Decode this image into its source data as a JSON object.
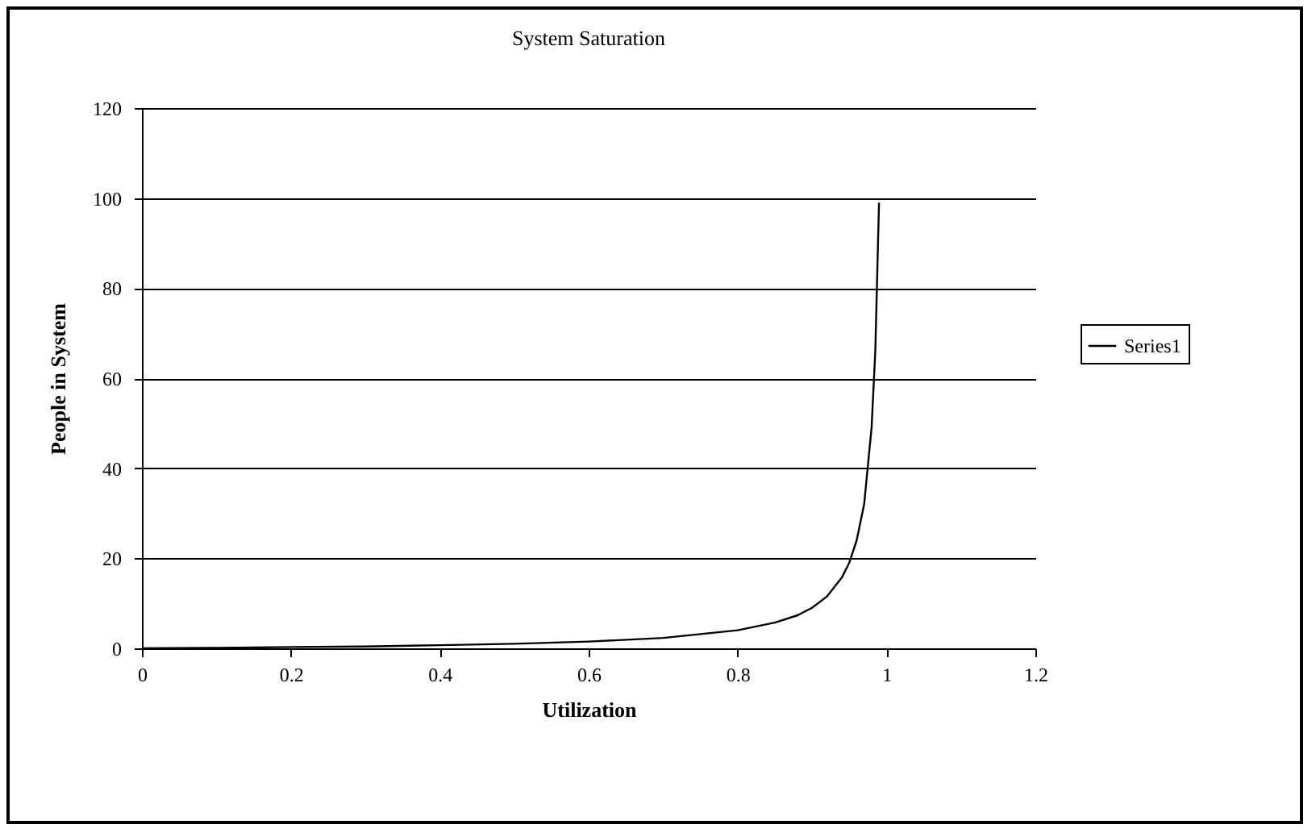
{
  "chart_data": {
    "type": "line",
    "title": "System Saturation",
    "xlabel": "Utilization",
    "ylabel": "People in System",
    "x": [
      0,
      0.1,
      0.2,
      0.3,
      0.4,
      0.5,
      0.6,
      0.7,
      0.8,
      0.85,
      0.88,
      0.9,
      0.92,
      0.94,
      0.95,
      0.96,
      0.97,
      0.98,
      0.985,
      0.99
    ],
    "series": [
      {
        "name": "Series1",
        "color": "#000000",
        "values": [
          0,
          0.1,
          0.3,
          0.4,
          0.7,
          1,
          1.5,
          2.3,
          4,
          5.7,
          7.3,
          9,
          11.5,
          15.7,
          19,
          24,
          32,
          49,
          66,
          99
        ]
      }
    ],
    "xlim": [
      0,
      1.2
    ],
    "xticks": [
      0,
      0.2,
      0.4,
      0.6,
      0.8,
      1,
      1.2
    ],
    "ylim": [
      0,
      120
    ],
    "yticks": [
      0,
      20,
      40,
      60,
      80,
      100,
      120
    ],
    "grid": "y",
    "legend": "right",
    "marker": "none",
    "line_style": "solid"
  }
}
